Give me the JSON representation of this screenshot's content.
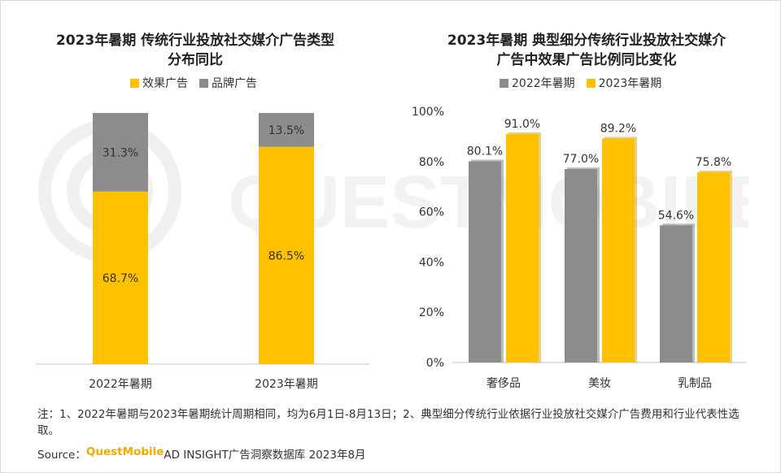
{
  "chart_data": [
    {
      "type": "bar",
      "stacked": true,
      "title_line1": "2023年暑期 传统行业投放社交媒介广告类型",
      "title_line2": "分布同比",
      "categories": [
        "2022年暑期",
        "2023年暑期"
      ],
      "series": [
        {
          "name": "效果广告",
          "values": [
            68.7,
            86.5
          ],
          "labels": [
            "68.7%",
            "86.5%"
          ],
          "color": "#ffc000"
        },
        {
          "name": "品牌广告",
          "values": [
            31.3,
            13.5
          ],
          "labels": [
            "31.3%",
            "13.5%"
          ],
          "color": "#8c8c8c"
        }
      ],
      "ylim": [
        0,
        100
      ],
      "grid": false,
      "legend_position": "top"
    },
    {
      "type": "bar",
      "title_line1": "2023年暑期 典型细分传统行业投放社交媒介",
      "title_line2": "广告中效果广告比例同比变化",
      "categories": [
        "奢侈品",
        "美妆",
        "乳制品"
      ],
      "series": [
        {
          "name": "2022年暑期",
          "values": [
            80.1,
            77.0,
            54.6
          ],
          "labels": [
            "80.1%",
            "77.0%",
            "54.6%"
          ],
          "color": "#8c8c8c"
        },
        {
          "name": "2023年暑期",
          "values": [
            91.0,
            89.2,
            75.8
          ],
          "labels": [
            "91.0%",
            "89.2%",
            "75.8%"
          ],
          "color": "#ffc000"
        }
      ],
      "yticks": [
        "0%",
        "20%",
        "40%",
        "60%",
        "80%",
        "100%"
      ],
      "ylim": [
        0,
        100
      ],
      "grid": false,
      "legend_position": "top"
    }
  ],
  "footer": {
    "note": "注：1、2022年暑期与2023年暑期统计周期相同，均为6月1日-8月13日；2、典型细分传统行业依据行业投放社交媒介广告费用和行业代表性选取。",
    "source_prefix": "Source：",
    "source_brand": "QuestMobile",
    "source_rest": " AD INSIGHT广告洞察数据库 2023年8月"
  },
  "watermark_text": "QUESTMOBILE"
}
